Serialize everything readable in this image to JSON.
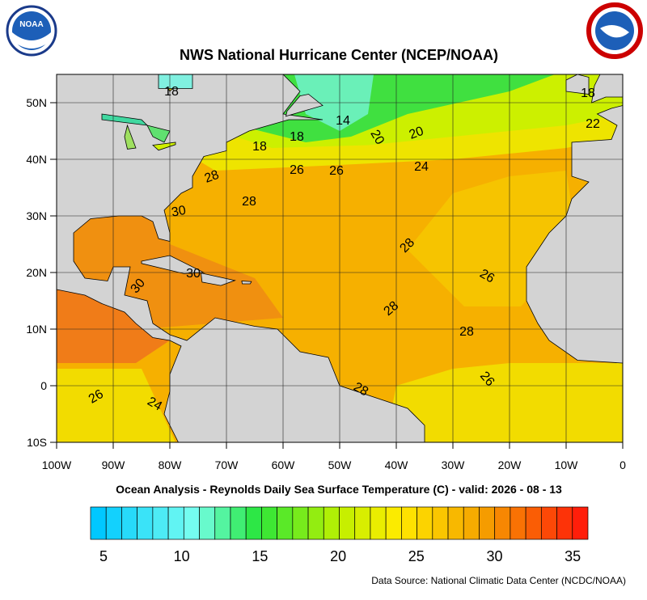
{
  "header": {
    "title": "NWS National Hurricane Center (NCEP/NOAA)",
    "logo_text": "NOAA"
  },
  "map": {
    "x_labels": [
      "100W",
      "90W",
      "80W",
      "70W",
      "60W",
      "50W",
      "40W",
      "30W",
      "20W",
      "10W",
      "0"
    ],
    "y_labels": [
      "50N",
      "40N",
      "30N",
      "20N",
      "10N",
      "0",
      "10S"
    ],
    "contour_labels": [
      "18",
      "18",
      "14",
      "20",
      "20",
      "22",
      "18",
      "18",
      "28",
      "26",
      "26",
      "24",
      "28",
      "30",
      "28",
      "26",
      "30",
      "30",
      "28",
      "28",
      "26",
      "28",
      "26",
      "24"
    ],
    "caption": "Ocean Analysis - Reynolds Daily Sea Surface Temperature (C) - valid: 2026 - 08 - 13"
  },
  "colorbar": {
    "ticks": [
      5,
      10,
      15,
      20,
      25,
      30,
      35
    ]
  },
  "footer": {
    "source": "Data Source: National Climatic Data Center (NCDC/NOAA)"
  }
}
